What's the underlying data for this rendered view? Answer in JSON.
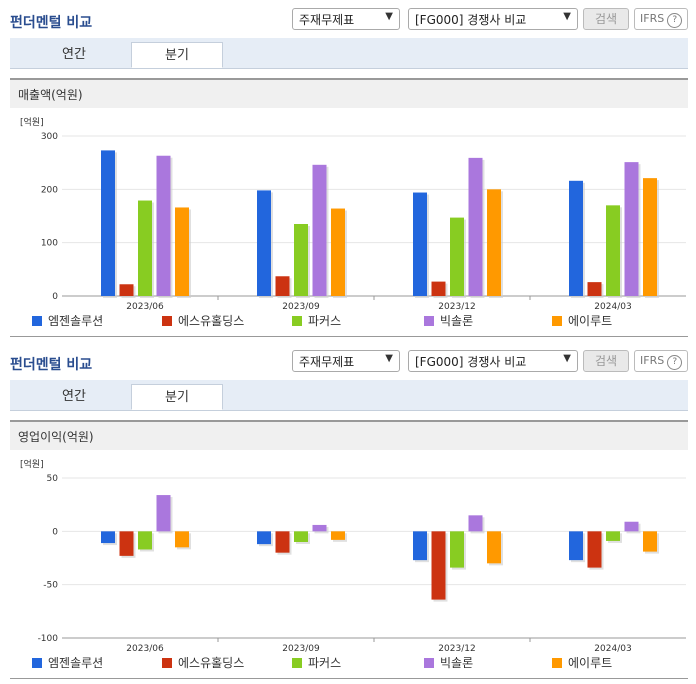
{
  "panels": [
    {
      "title": "펀더멘털 비교",
      "select1": "주재무제표",
      "select2": "[FG000] 경쟁사 비교",
      "search": "검색",
      "ifrs": "IFRS",
      "help": "?",
      "tabs": [
        "연간",
        "분기"
      ],
      "active_tab": "분기",
      "metric": "매출액(억원)"
    },
    {
      "title": "펀더멘털 비교",
      "select1": "주재무제표",
      "select2": "[FG000] 경쟁사 비교",
      "search": "검색",
      "ifrs": "IFRS",
      "help": "?",
      "tabs": [
        "연간",
        "분기"
      ],
      "active_tab": "분기",
      "metric": "영업이익(억원)"
    }
  ],
  "colors": [
    "#2266dd",
    "#cc3311",
    "#88cc22",
    "#aa77dd",
    "#ff9900"
  ],
  "chart_data": [
    {
      "type": "bar",
      "unit": "[억원]",
      "categories": [
        "2023/06",
        "2023/09",
        "2023/12",
        "2024/03"
      ],
      "ylim": [
        0,
        300
      ],
      "yticks": [
        0,
        100,
        200,
        300
      ],
      "grid": true,
      "legend_position": "bottom",
      "series": [
        {
          "name": "엠젠솔루션",
          "values": [
            273,
            198,
            194,
            216
          ]
        },
        {
          "name": "에스유홀딩스",
          "values": [
            22,
            37,
            27,
            26
          ]
        },
        {
          "name": "파커스",
          "values": [
            179,
            135,
            147,
            170
          ]
        },
        {
          "name": "빅솔론",
          "values": [
            263,
            246,
            259,
            251
          ]
        },
        {
          "name": "에이루트",
          "values": [
            166,
            164,
            200,
            221
          ]
        }
      ]
    },
    {
      "type": "bar",
      "unit": "[억원]",
      "categories": [
        "2023/06",
        "2023/09",
        "2023/12",
        "2024/03"
      ],
      "ylim": [
        -100,
        50
      ],
      "yticks": [
        50,
        0,
        -50,
        -100
      ],
      "grid": true,
      "legend_position": "bottom",
      "series": [
        {
          "name": "엠젠솔루션",
          "values": [
            -11,
            -12,
            -27,
            -27
          ]
        },
        {
          "name": "에스유홀딩스",
          "values": [
            -23,
            -20,
            -64,
            -34
          ]
        },
        {
          "name": "파커스",
          "values": [
            -17,
            -10,
            -34,
            -9
          ]
        },
        {
          "name": "빅솔론",
          "values": [
            34,
            6,
            15,
            9
          ]
        },
        {
          "name": "에이루트",
          "values": [
            -15,
            -8,
            -30,
            -19
          ]
        }
      ]
    }
  ]
}
